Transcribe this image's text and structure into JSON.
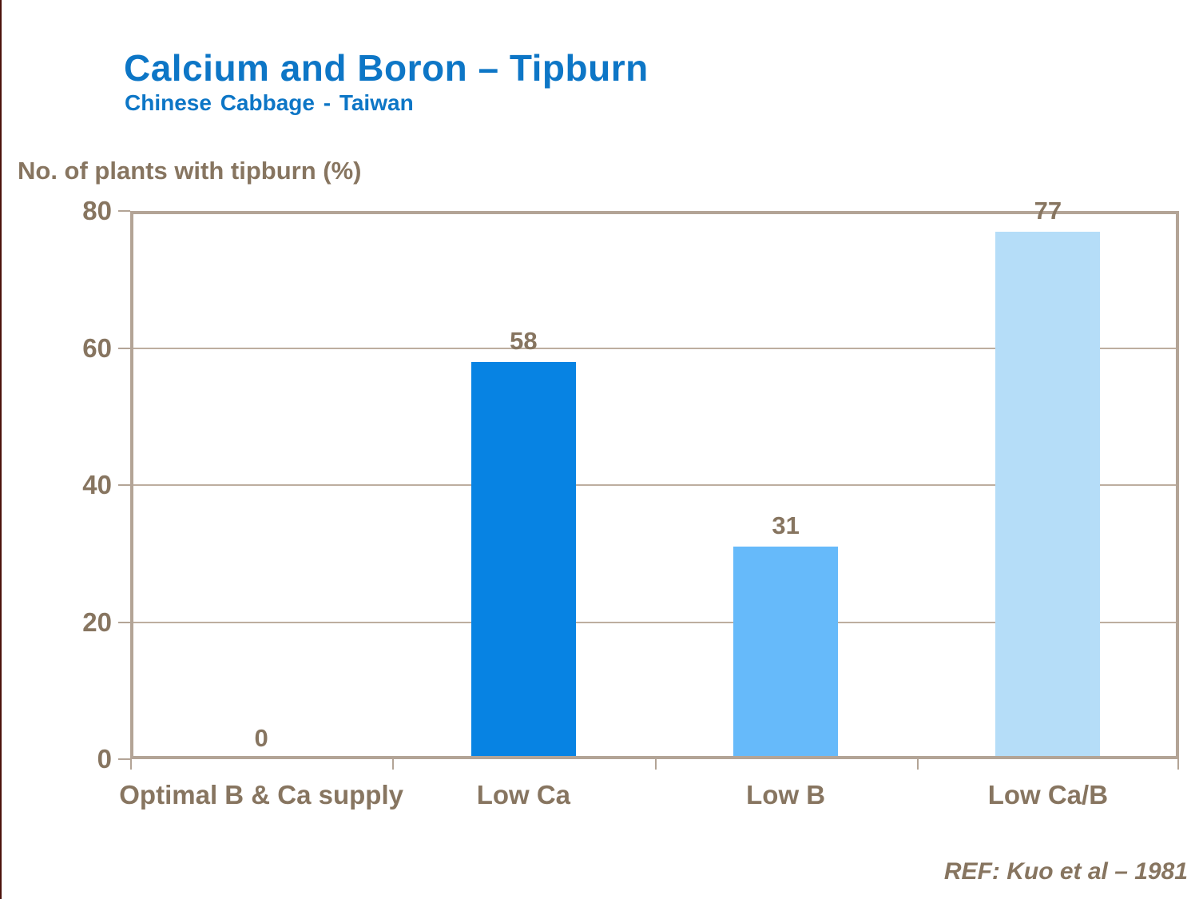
{
  "chart_data": {
    "type": "bar",
    "title": "Calcium and Boron – Tipburn",
    "subtitle": "Chinese Cabbage - Taiwan",
    "ylabel": "No. of plants with tipburn (%)",
    "categories": [
      "Optimal B & Ca supply",
      "Low Ca",
      "Low B",
      "Low Ca/B"
    ],
    "values": [
      0,
      58,
      31,
      77
    ],
    "data_labels": [
      "0",
      "58",
      "31",
      "77"
    ],
    "bar_colors": [
      null,
      "#0783e3",
      "#66bafa",
      "#b5ddf8"
    ],
    "ylim": [
      0,
      80
    ],
    "yticks": [
      0,
      20,
      40,
      60,
      80
    ],
    "grid": true,
    "legend": "none",
    "annotation": "REF: Kuo et al – 1981",
    "colors": {
      "title_blue": "#0d76c6",
      "text_brown": "#877560",
      "axis_tan": "#b3a496",
      "gridline_tan": "#bdae9f",
      "left_edge_dark_red": "#4c130c"
    }
  }
}
